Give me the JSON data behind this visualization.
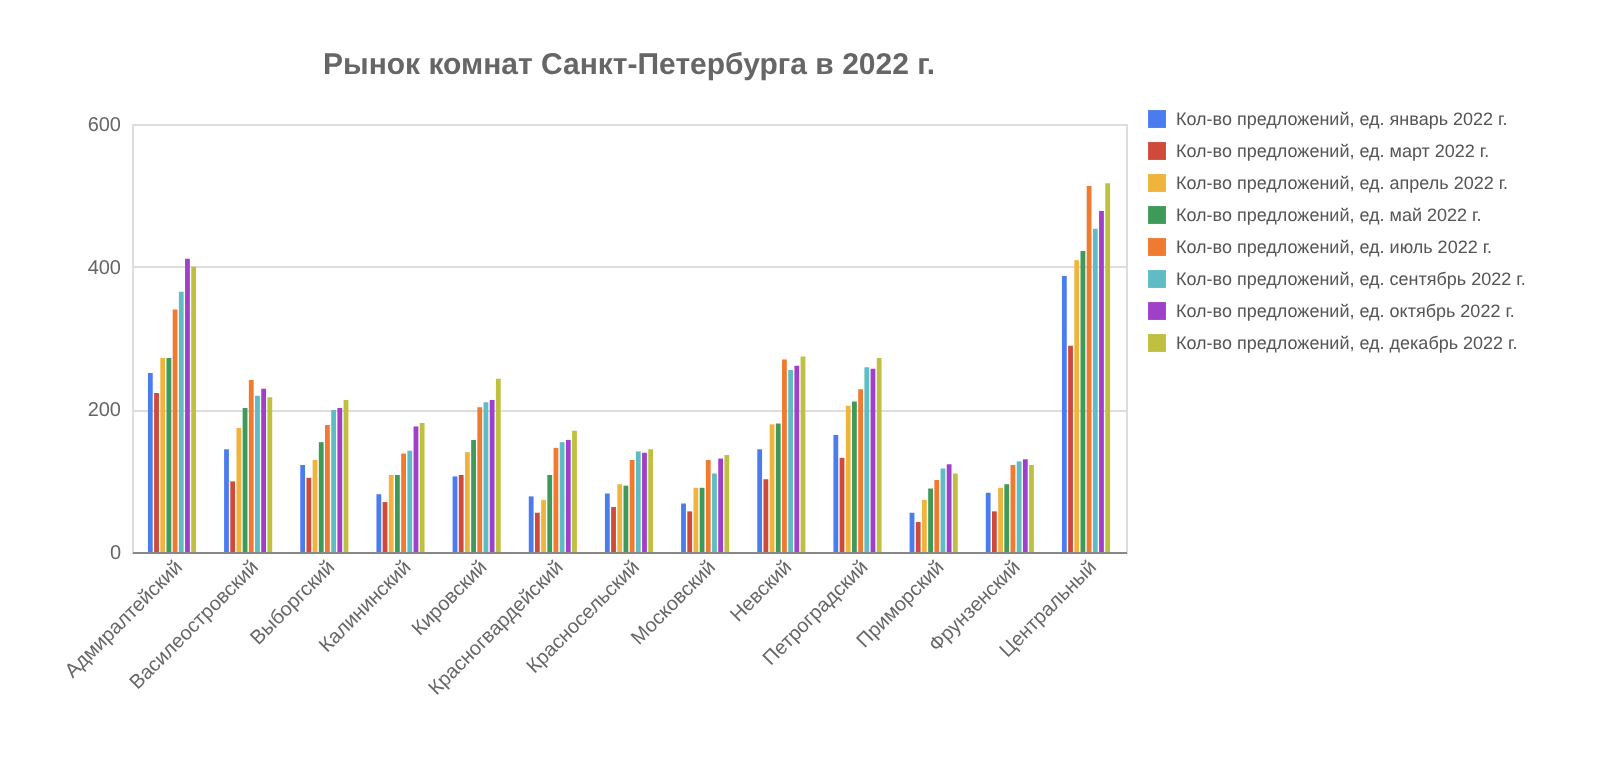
{
  "chart_data": {
    "type": "bar",
    "title": "Рынок комнат Санкт-Петербурга в 2022 г.",
    "categories": [
      "Адмиралтейский",
      "Василеостровский",
      "Выборгский",
      "Калининский",
      "Кировский",
      "Красногвардейский",
      "Красносельский",
      "Московский",
      "Невский",
      "Петроградский",
      "Приморский",
      "Фрунзенский",
      "Центральный"
    ],
    "series": [
      {
        "name": "Кол-во предложений, ед. январь 2022 г.",
        "color": "#4a7cf0",
        "values": [
          251,
          144,
          122,
          81,
          106,
          78,
          82,
          68,
          144,
          164,
          55,
          83,
          387
        ]
      },
      {
        "name": "Кол-во предложений, ед. март 2022 г.",
        "color": "#d04a3c",
        "values": [
          223,
          99,
          104,
          70,
          108,
          55,
          63,
          57,
          102,
          132,
          42,
          57,
          289
        ]
      },
      {
        "name": "Кол-во предложений, ед. апрель 2022 г.",
        "color": "#f0b43c",
        "values": [
          272,
          174,
          129,
          108,
          140,
          73,
          95,
          90,
          179,
          205,
          73,
          90,
          409
        ]
      },
      {
        "name": "Кол-во предложений, ед. май 2022 г.",
        "color": "#3f9a5a",
        "values": [
          272,
          202,
          154,
          108,
          157,
          108,
          93,
          90,
          180,
          211,
          89,
          95,
          422
        ]
      },
      {
        "name": "Кол-во предложений, ед. июль 2022 г.",
        "color": "#f07a30",
        "values": [
          340,
          241,
          178,
          138,
          203,
          146,
          129,
          129,
          270,
          228,
          101,
          122,
          513
        ]
      },
      {
        "name": "Кол-во предложений, ед. сентябрь 2022 г.",
        "color": "#5fbcc5",
        "values": [
          365,
          219,
          199,
          142,
          210,
          154,
          141,
          110,
          255,
          259,
          117,
          127,
          453
        ]
      },
      {
        "name": "Кол-во предложений, ед. октябрь 2022 г.",
        "color": "#a040c8",
        "values": [
          411,
          229,
          202,
          176,
          213,
          157,
          139,
          131,
          261,
          257,
          123,
          130,
          478
        ]
      },
      {
        "name": "Кол-во предложений, ед. декабрь 2022 г.",
        "color": "#c0c040",
        "values": [
          400,
          217,
          213,
          181,
          243,
          170,
          144,
          136,
          274,
          272,
          110,
          122,
          517
        ]
      }
    ],
    "ylim": [
      0,
      600
    ],
    "yticks": [
      0,
      200,
      400,
      600
    ],
    "grid": "y",
    "legend": "right"
  }
}
